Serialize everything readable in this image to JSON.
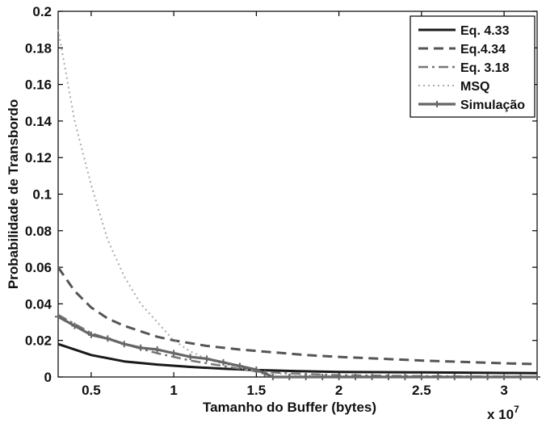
{
  "chart_data": {
    "type": "line",
    "xlabel": "Tamanho do Buffer (bytes)",
    "ylabel": "Probabilidade de Transbordo",
    "x_multiplier_label": "x 10",
    "x_multiplier_exponent": "7",
    "xlim": [
      0.3,
      3.2
    ],
    "ylim": [
      0,
      0.2
    ],
    "x_ticks": [
      0.5,
      1,
      1.5,
      2,
      2.5,
      3
    ],
    "x_tick_labels": [
      "0.5",
      "1",
      "1.5",
      "2",
      "2.5",
      "3"
    ],
    "y_ticks": [
      0,
      0.02,
      0.04,
      0.06,
      0.08,
      0.1,
      0.12,
      0.14,
      0.16,
      0.18,
      0.2
    ],
    "y_tick_labels": [
      "0",
      "0.02",
      "0.04",
      "0.06",
      "0.08",
      "0.1",
      "0.12",
      "0.14",
      "0.16",
      "0.18",
      "0.2"
    ],
    "grid": false,
    "legend_position": "top-right",
    "series": [
      {
        "name": "Eq. 4.33",
        "style": "solid",
        "color": "#1a1a1a",
        "x": [
          0.3,
          0.5,
          0.7,
          0.9,
          1.1,
          1.3,
          1.5,
          1.75,
          2.0,
          2.5,
          3.0,
          3.2
        ],
        "y": [
          0.018,
          0.012,
          0.0085,
          0.0068,
          0.0055,
          0.0045,
          0.0038,
          0.0032,
          0.0028,
          0.0025,
          0.0022,
          0.0021
        ]
      },
      {
        "name": "Eq.4.34",
        "style": "dashed",
        "color": "#555555",
        "x": [
          0.3,
          0.4,
          0.5,
          0.6,
          0.7,
          0.8,
          0.9,
          1.0,
          1.2,
          1.4,
          1.6,
          1.8,
          2.0,
          2.5,
          3.0,
          3.2
        ],
        "y": [
          0.06,
          0.047,
          0.038,
          0.032,
          0.028,
          0.025,
          0.022,
          0.02,
          0.017,
          0.015,
          0.0135,
          0.012,
          0.011,
          0.009,
          0.0075,
          0.007
        ]
      },
      {
        "name": "Eq. 3.18",
        "style": "dashdot",
        "color": "#777777",
        "x": [
          0.3,
          0.5,
          0.7,
          0.9,
          1.1,
          1.3,
          1.5,
          1.7,
          2.0,
          2.5,
          3.0,
          3.2
        ],
        "y": [
          0.034,
          0.024,
          0.018,
          0.013,
          0.009,
          0.006,
          0.003,
          0.002,
          0.001,
          0.0005,
          0.0002,
          0.0001
        ]
      },
      {
        "name": "MSQ",
        "style": "dotted",
        "color": "#aaaaaa",
        "x": [
          0.3,
          0.4,
          0.5,
          0.6,
          0.7,
          0.8,
          0.9,
          1.0,
          1.1,
          1.2,
          1.3,
          1.4,
          1.5,
          1.6,
          1.8,
          2.0,
          2.5,
          3.0,
          3.2
        ],
        "y": [
          0.19,
          0.14,
          0.105,
          0.075,
          0.055,
          0.04,
          0.03,
          0.02,
          0.014,
          0.01,
          0.007,
          0.005,
          0.003,
          0.002,
          0.001,
          0.0005,
          0.0002,
          0.0001,
          0.0001
        ]
      },
      {
        "name": "Simulação",
        "style": "solid-plus",
        "color": "#666666",
        "x": [
          0.3,
          0.4,
          0.5,
          0.6,
          0.7,
          0.8,
          0.9,
          1.0,
          1.1,
          1.2,
          1.3,
          1.4,
          1.5,
          1.55,
          1.6,
          1.7,
          1.8,
          1.9,
          2.0,
          2.1,
          2.2,
          2.3,
          2.4,
          2.5,
          2.6,
          2.7,
          2.8,
          2.9,
          3.0,
          3.1,
          3.2
        ],
        "y": [
          0.033,
          0.028,
          0.023,
          0.021,
          0.018,
          0.016,
          0.015,
          0.013,
          0.011,
          0.01,
          0.008,
          0.006,
          0.004,
          0.002,
          0.0,
          0.0,
          0.0,
          0.0,
          0.0,
          0.0,
          0.0,
          0.0,
          0.0,
          0.0,
          0.0,
          0.0,
          0.0,
          0.0,
          0.0,
          0.0,
          0.0
        ]
      }
    ]
  }
}
